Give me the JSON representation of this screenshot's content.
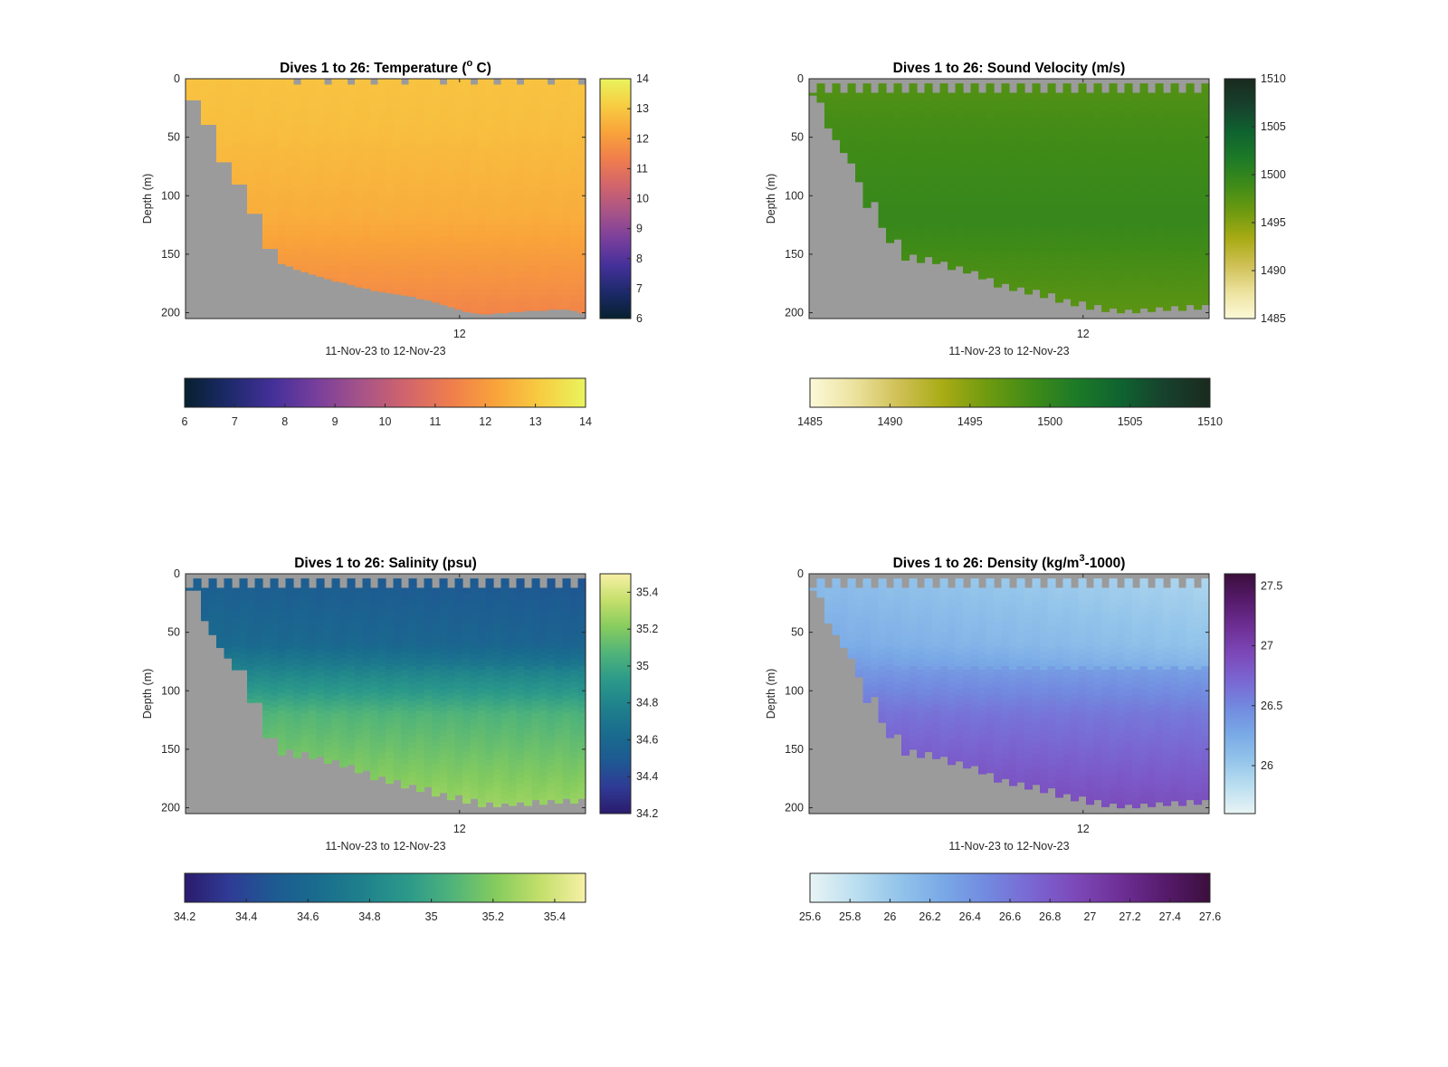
{
  "figure": {
    "background": "#ffffff",
    "land_color": "#9b9b9b"
  },
  "chart_data": [
    {
      "type": "heatmap",
      "id": "temperature",
      "title": "Dives 1 to 26: Temperature (",
      "title_sup": "o",
      "title_end": " C)",
      "xlabel": "11-Nov-23 to 12-Nov-23",
      "ylabel": "Depth (m)",
      "x_ticks": [
        "12"
      ],
      "y_ticks": [
        0,
        50,
        100,
        150,
        200
      ],
      "ylim": [
        0,
        205
      ],
      "clim": [
        6,
        14
      ],
      "colorbar_ticks": [
        6,
        7,
        8,
        9,
        10,
        11,
        12,
        13,
        14
      ],
      "hcolorbar_ticks": [
        6,
        7,
        8,
        9,
        10,
        11,
        12,
        13,
        14
      ],
      "colormap": [
        "#06202f",
        "#1d2a6b",
        "#45309a",
        "#7a3f9c",
        "#a85487",
        "#d2656b",
        "#f07e4c",
        "#f9a43a",
        "#f7cd42",
        "#e9f45d"
      ],
      "dives": 52,
      "bottom_depth": [
        18,
        18,
        39,
        39,
        71,
        71,
        90,
        90,
        115,
        115,
        145,
        145,
        158,
        160,
        163,
        165,
        167,
        169,
        171,
        173,
        174,
        176,
        178,
        179,
        181,
        182,
        183,
        184,
        185,
        186,
        188,
        189,
        191,
        193,
        195,
        197,
        199,
        200,
        201,
        201,
        200,
        200,
        199,
        199,
        198,
        198,
        198,
        197,
        197,
        197,
        198,
        200
      ],
      "surface_gaps": [
        0,
        0,
        0,
        0,
        0,
        0,
        0,
        0,
        0,
        0,
        0,
        0,
        0,
        0,
        5,
        0,
        0,
        0,
        5,
        0,
        0,
        5,
        0,
        0,
        5,
        0,
        0,
        0,
        5,
        0,
        0,
        0,
        0,
        5,
        0,
        0,
        0,
        5,
        0,
        0,
        5,
        0,
        0,
        5,
        0,
        0,
        0,
        5,
        0,
        0,
        0,
        5
      ],
      "profile": {
        "surface": 12.9,
        "top_depth": 40,
        "top_value": 12.8,
        "mid_depth": 120,
        "mid_value": 12.4,
        "deep_depth": 200,
        "deep_value": 11.5,
        "trend": 0.0
      }
    },
    {
      "type": "heatmap",
      "id": "sound_velocity",
      "title": "Dives 1 to 26: Sound Velocity (m/s)",
      "xlabel": "11-Nov-23 to 12-Nov-23",
      "ylabel": "Depth (m)",
      "x_ticks": [
        "12"
      ],
      "y_ticks": [
        0,
        50,
        100,
        150,
        200
      ],
      "ylim": [
        0,
        205
      ],
      "clim": [
        1485,
        1510
      ],
      "colorbar_ticks": [
        1485,
        1490,
        1495,
        1500,
        1505,
        1510
      ],
      "hcolorbar_ticks": [
        1485,
        1490,
        1495,
        1500,
        1505,
        1510
      ],
      "colormap": [
        "#fcf9d8",
        "#ece29e",
        "#cfc055",
        "#a8ab14",
        "#6e9a10",
        "#3f8b18",
        "#1d7a27",
        "#0f6330",
        "#17402d",
        "#1a2a1e"
      ],
      "dives": 52,
      "bottom_depth": [
        14,
        20,
        42,
        52,
        63,
        72,
        88,
        110,
        105,
        127,
        140,
        137,
        155,
        150,
        157,
        152,
        158,
        156,
        163,
        160,
        166,
        164,
        171,
        170,
        178,
        175,
        181,
        178,
        184,
        180,
        187,
        183,
        191,
        188,
        194,
        190,
        197,
        193,
        199,
        196,
        200,
        197,
        200,
        196,
        199,
        195,
        198,
        194,
        198,
        193,
        197,
        193
      ],
      "surface_gaps": [
        12,
        4,
        12,
        4,
        12,
        4,
        12,
        4,
        12,
        4,
        12,
        4,
        12,
        4,
        12,
        4,
        12,
        4,
        12,
        4,
        12,
        4,
        12,
        4,
        12,
        4,
        12,
        4,
        12,
        4,
        12,
        4,
        12,
        4,
        12,
        4,
        12,
        4,
        12,
        4,
        12,
        4,
        12,
        4,
        12,
        4,
        12,
        4,
        12,
        4,
        12,
        4
      ],
      "profile": {
        "surface": 1497.6,
        "top_depth": 40,
        "top_value": 1498.6,
        "mid_depth": 120,
        "mid_value": 1499.6,
        "deep_depth": 200,
        "deep_value": 1497.2,
        "trend": 0.0
      }
    },
    {
      "type": "heatmap",
      "id": "salinity",
      "title": "Dives 1 to 26: Salinity (psu)",
      "xlabel": "11-Nov-23 to 12-Nov-23",
      "ylabel": "Depth (m)",
      "x_ticks": [
        "12"
      ],
      "y_ticks": [
        0,
        50,
        100,
        150,
        200
      ],
      "ylim": [
        0,
        205
      ],
      "clim": [
        34.2,
        35.5
      ],
      "colorbar_ticks": [
        34.2,
        34.4,
        34.6,
        34.8,
        35,
        35.2,
        35.4
      ],
      "hcolorbar_ticks": [
        34.2,
        34.4,
        34.6,
        34.8,
        35,
        35.2,
        35.4
      ],
      "colormap": [
        "#2a1b6c",
        "#2f3b95",
        "#1e5a92",
        "#196c8e",
        "#1f818c",
        "#2b998a",
        "#4fb37a",
        "#86cc5e",
        "#c4df6b",
        "#f7f0a6"
      ],
      "dives": 52,
      "bottom_depth": [
        14,
        14,
        40,
        52,
        63,
        72,
        82,
        82,
        110,
        110,
        140,
        140,
        155,
        150,
        157,
        152,
        158,
        156,
        162,
        159,
        165,
        163,
        170,
        168,
        176,
        173,
        179,
        176,
        183,
        180,
        186,
        182,
        190,
        187,
        193,
        189,
        196,
        192,
        199,
        195,
        199,
        196,
        198,
        195,
        198,
        193,
        197,
        193,
        196,
        192,
        196,
        192
      ],
      "surface_gaps": [
        12,
        4,
        12,
        4,
        12,
        4,
        12,
        4,
        12,
        4,
        12,
        4,
        12,
        4,
        12,
        4,
        12,
        4,
        12,
        4,
        12,
        4,
        12,
        4,
        12,
        4,
        12,
        4,
        12,
        4,
        12,
        4,
        12,
        4,
        12,
        4,
        12,
        4,
        12,
        4,
        12,
        4,
        12,
        4,
        12,
        4,
        12,
        4,
        12,
        4,
        12,
        4
      ],
      "profile": {
        "surface": 34.52,
        "top_depth": 60,
        "top_value": 34.62,
        "mid_depth": 120,
        "mid_value": 35.08,
        "deep_depth": 200,
        "deep_value": 35.28,
        "trend": -0.06
      }
    },
    {
      "type": "heatmap",
      "id": "density",
      "title": "Dives 1 to 26: Density (kg/m",
      "title_sup": "3",
      "title_end": "-1000)",
      "xlabel": "11-Nov-23 to 12-Nov-23",
      "ylabel": "Depth (m)",
      "x_ticks": [
        "12"
      ],
      "y_ticks": [
        0,
        50,
        100,
        150,
        200
      ],
      "ylim": [
        0,
        205
      ],
      "clim": [
        25.6,
        27.6
      ],
      "colorbar_ticks": [
        26,
        26.5,
        27,
        27.5
      ],
      "hcolorbar_ticks": [
        25.6,
        25.8,
        26,
        26.2,
        26.4,
        26.6,
        26.8,
        27,
        27.2,
        27.4,
        27.6
      ],
      "colormap": [
        "#e8f4f4",
        "#bcdff0",
        "#93c4ea",
        "#79a9e6",
        "#7289df",
        "#7a66d2",
        "#7c48b8",
        "#6e2f95",
        "#561a6b",
        "#3b0f3c"
      ],
      "dives": 52,
      "bottom_depth": [
        14,
        20,
        42,
        52,
        63,
        72,
        88,
        110,
        105,
        127,
        140,
        137,
        155,
        150,
        157,
        152,
        158,
        156,
        163,
        160,
        166,
        164,
        171,
        170,
        178,
        175,
        181,
        178,
        184,
        180,
        187,
        183,
        191,
        188,
        194,
        190,
        197,
        193,
        199,
        196,
        200,
        197,
        200,
        196,
        199,
        195,
        198,
        194,
        198,
        193,
        197,
        193
      ],
      "surface_gaps": [
        12,
        4,
        12,
        4,
        12,
        4,
        12,
        4,
        12,
        4,
        12,
        4,
        12,
        4,
        12,
        4,
        12,
        4,
        12,
        4,
        12,
        4,
        12,
        4,
        12,
        4,
        12,
        4,
        12,
        4,
        12,
        4,
        12,
        4,
        12,
        4,
        12,
        4,
        12,
        4,
        12,
        4,
        12,
        4,
        12,
        4,
        12,
        4,
        12,
        4,
        12,
        4
      ],
      "profile": {
        "surface": 26.1,
        "top_depth": 60,
        "top_value": 26.25,
        "mid_depth": 120,
        "mid_value": 26.65,
        "deep_depth": 200,
        "deep_value": 26.95,
        "trend": -0.2
      }
    }
  ]
}
